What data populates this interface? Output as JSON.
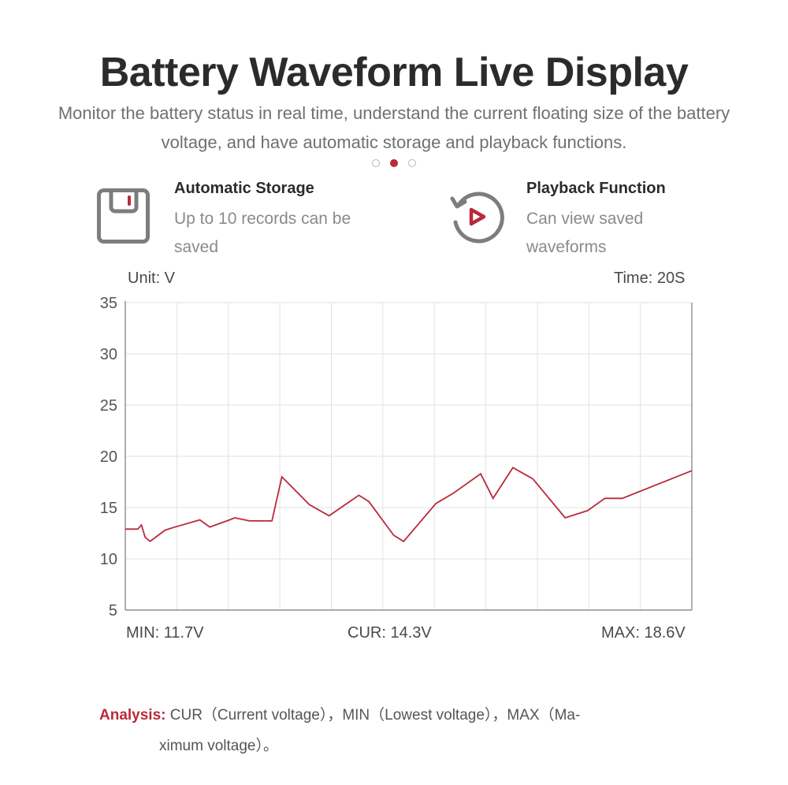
{
  "header": {
    "title": "Battery Waveform Live Display",
    "subtitle": "Monitor the battery status in real time, understand the current floating size of the battery voltage, and have automatic storage and playback functions."
  },
  "pagination": {
    "total": 3,
    "active": 2
  },
  "features": [
    {
      "title": "Automatic Storage",
      "description": "Up to 10 records can be saved",
      "icon": "floppy-disk-icon"
    },
    {
      "title": "Playback Function",
      "description": "Can view saved waveforms",
      "icon": "replay-icon"
    }
  ],
  "colors": {
    "accent": "#b82a3a",
    "grid": "#e2e2e2",
    "axis": "#7a7a7a",
    "text": "#4a4a4a"
  },
  "chart_labels": {
    "unit": "Unit: V",
    "time": "Time: 20S",
    "min": "MIN: 11.7V",
    "cur": "CUR: 14.3V",
    "max": "MAX: 18.6V"
  },
  "chart_data": {
    "type": "line",
    "x": [
      0,
      0.2,
      0.5,
      0.65,
      0.8,
      1.0,
      1.6,
      2.0,
      3.0,
      3.4,
      4.2,
      4.4,
      5.0,
      5.9,
      6.3,
      7.4,
      8.2,
      9.4,
      9.8,
      10.8,
      11.2,
      12.5,
      13.2,
      14.3,
      14.8,
      15.6,
      16.4,
      17.7,
      18.6,
      19.3,
      20.0,
      22.8
    ],
    "y": [
      12.9,
      12.9,
      12.9,
      13.3,
      12.1,
      11.7,
      12.8,
      13.1,
      13.8,
      13.1,
      13.8,
      14.0,
      13.7,
      13.7,
      18.0,
      15.3,
      14.2,
      16.2,
      15.6,
      12.3,
      11.7,
      15.4,
      16.4,
      18.3,
      15.9,
      18.9,
      17.8,
      14.0,
      14.7,
      15.9,
      15.9,
      18.6
    ],
    "ylim": [
      5,
      35
    ],
    "yticks": [
      5,
      10,
      15,
      20,
      25,
      30,
      35
    ],
    "grid": true,
    "line_color": "#b82a3a"
  },
  "analysis": {
    "label": "Analysis:",
    "text_line1": "CUR（Current voltage），MIN（Lowest voltage），MAX（Ma-",
    "text_line2": "ximum voltage）。"
  }
}
